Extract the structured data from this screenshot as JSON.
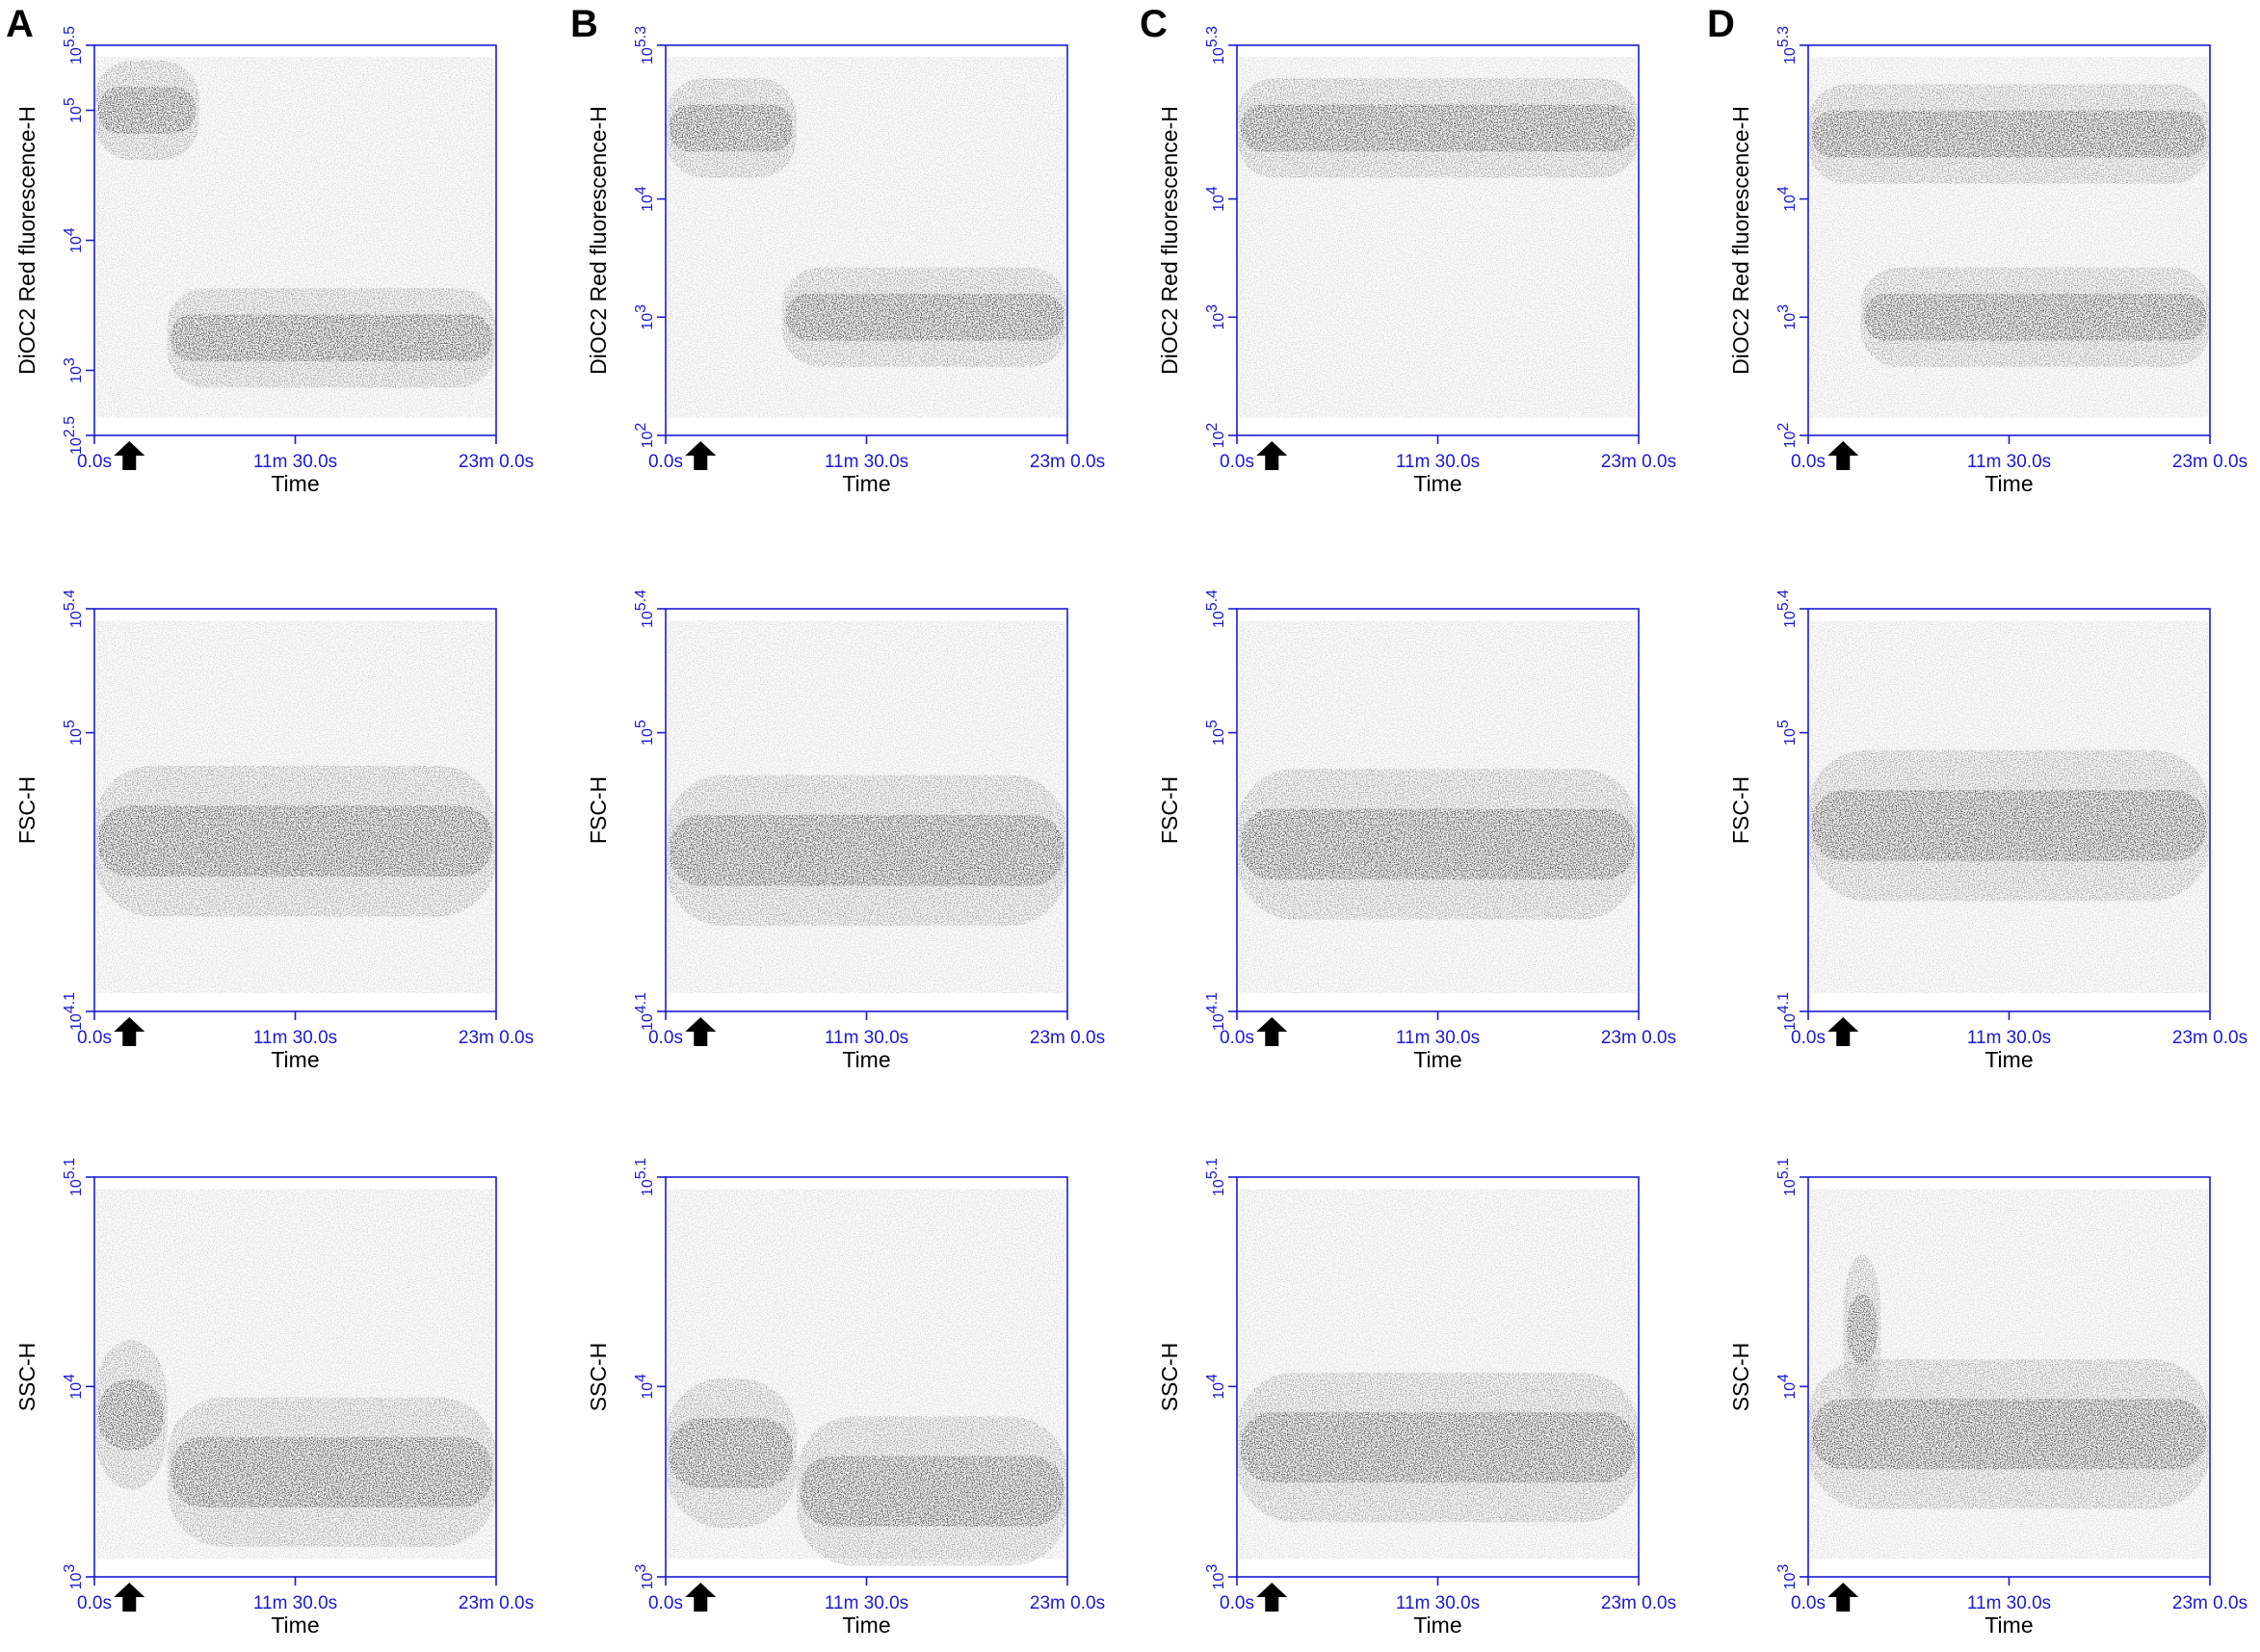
{
  "figure": {
    "panel_letters": [
      "A",
      "B",
      "C",
      "D"
    ]
  },
  "colors": {
    "axis": "#1a1ad0",
    "density_low": "#c0c0c0",
    "density_mid": "#707070",
    "density_high": "#1a1a1a",
    "arrow": "#000000"
  },
  "icons": {
    "arrow": "up-arrow-icon"
  },
  "chart_data": [
    {
      "type": "heatmap",
      "panel": "A",
      "row": 1,
      "xlabel": "Time",
      "ylabel": "DiOC2 Red fluorescence-H",
      "x_ticks": [
        "0.0s",
        "11m 30.0s",
        "23m 0.0s"
      ],
      "xlim_seconds": [
        0,
        1380
      ],
      "y_scale": "log10",
      "ylim_log10": [
        2.5,
        5.5
      ],
      "y_ticks": [
        {
          "base": "10",
          "exp": "2.5",
          "log": 2.5
        },
        {
          "base": "10",
          "exp": "3",
          "log": 3
        },
        {
          "base": "10",
          "exp": "4",
          "log": 4
        },
        {
          "base": "10",
          "exp": "5",
          "log": 5
        },
        {
          "base": "10",
          "exp": "5.5",
          "log": 5.5
        }
      ],
      "arrow_time_s": 120,
      "densest_populations": [
        {
          "time_s": [
            0,
            360
          ],
          "log10_center": 5.0
        },
        {
          "time_s": [
            250,
            1380
          ],
          "log10_center": 3.25
        }
      ]
    },
    {
      "type": "heatmap",
      "panel": "B",
      "row": 1,
      "xlabel": "Time",
      "ylabel": "DiOC2 Red fluorescence-H",
      "x_ticks": [
        "0.0s",
        "11m 30.0s",
        "23m 0.0s"
      ],
      "xlim_seconds": [
        0,
        1380
      ],
      "y_scale": "log10",
      "ylim_log10": [
        2,
        5.3
      ],
      "y_ticks": [
        {
          "base": "10",
          "exp": "2",
          "log": 2
        },
        {
          "base": "10",
          "exp": "3",
          "log": 3
        },
        {
          "base": "10",
          "exp": "4",
          "log": 4
        },
        {
          "base": "10",
          "exp": "5.3",
          "log": 5.3
        }
      ],
      "arrow_time_s": 120,
      "densest_populations": [
        {
          "time_s": [
            0,
            450
          ],
          "log10_center": 4.6
        },
        {
          "time_s": [
            400,
            1380
          ],
          "log10_center": 3.0
        }
      ]
    },
    {
      "type": "heatmap",
      "panel": "C",
      "row": 1,
      "xlabel": "Time",
      "ylabel": "DiOC2 Red fluorescence-H",
      "x_ticks": [
        "0.0s",
        "11m 30.0s",
        "23m 0.0s"
      ],
      "xlim_seconds": [
        0,
        1380
      ],
      "y_scale": "log10",
      "ylim_log10": [
        2,
        5.3
      ],
      "y_ticks": [
        {
          "base": "10",
          "exp": "2",
          "log": 2
        },
        {
          "base": "10",
          "exp": "3",
          "log": 3
        },
        {
          "base": "10",
          "exp": "4",
          "log": 4
        },
        {
          "base": "10",
          "exp": "5.3",
          "log": 5.3
        }
      ],
      "arrow_time_s": 120,
      "densest_populations": [
        {
          "time_s": [
            0,
            1380
          ],
          "log10_center": 4.6
        }
      ]
    },
    {
      "type": "heatmap",
      "panel": "D",
      "row": 1,
      "xlabel": "Time",
      "ylabel": "DiOC2 Red fluorescence-H",
      "x_ticks": [
        "0.0s",
        "11m 30.0s",
        "23m 0.0s"
      ],
      "xlim_seconds": [
        0,
        1380
      ],
      "y_scale": "log10",
      "ylim_log10": [
        2,
        5.3
      ],
      "y_ticks": [
        {
          "base": "10",
          "exp": "2",
          "log": 2
        },
        {
          "base": "10",
          "exp": "3",
          "log": 3
        },
        {
          "base": "10",
          "exp": "4",
          "log": 4
        },
        {
          "base": "10",
          "exp": "5.3",
          "log": 5.3
        }
      ],
      "arrow_time_s": 120,
      "densest_populations": [
        {
          "time_s": [
            0,
            1380
          ],
          "log10_center": 4.55
        },
        {
          "time_s": [
            180,
            1380
          ],
          "log10_center": 3.0
        }
      ]
    },
    {
      "type": "heatmap",
      "panel": "A",
      "row": 2,
      "xlabel": "Time",
      "ylabel": "FSC-H",
      "x_ticks": [
        "0.0s",
        "11m 30.0s",
        "23m 0.0s"
      ],
      "xlim_seconds": [
        0,
        1380
      ],
      "y_scale": "log10",
      "ylim_log10": [
        4.1,
        5.4
      ],
      "y_ticks": [
        {
          "base": "10",
          "exp": "4.1",
          "log": 4.1
        },
        {
          "base": "10",
          "exp": "5",
          "log": 5
        },
        {
          "base": "10",
          "exp": "5.4",
          "log": 5.4
        }
      ],
      "arrow_time_s": 120,
      "densest_populations": [
        {
          "time_s": [
            0,
            1380
          ],
          "log10_center": 4.65
        }
      ]
    },
    {
      "type": "heatmap",
      "panel": "B",
      "row": 2,
      "xlabel": "Time",
      "ylabel": "FSC-H",
      "x_ticks": [
        "0.0s",
        "11m 30.0s",
        "23m 0.0s"
      ],
      "xlim_seconds": [
        0,
        1380
      ],
      "y_scale": "log10",
      "ylim_log10": [
        4.1,
        5.4
      ],
      "y_ticks": [
        {
          "base": "10",
          "exp": "4.1",
          "log": 4.1
        },
        {
          "base": "10",
          "exp": "5",
          "log": 5
        },
        {
          "base": "10",
          "exp": "5.4",
          "log": 5.4
        }
      ],
      "arrow_time_s": 120,
      "densest_populations": [
        {
          "time_s": [
            0,
            1380
          ],
          "log10_center": 4.62
        }
      ]
    },
    {
      "type": "heatmap",
      "panel": "C",
      "row": 2,
      "xlabel": "Time",
      "ylabel": "FSC-H",
      "x_ticks": [
        "0.0s",
        "11m 30.0s",
        "23m 0.0s"
      ],
      "xlim_seconds": [
        0,
        1380
      ],
      "y_scale": "log10",
      "ylim_log10": [
        4.1,
        5.4
      ],
      "y_ticks": [
        {
          "base": "10",
          "exp": "4.1",
          "log": 4.1
        },
        {
          "base": "10",
          "exp": "5",
          "log": 5
        },
        {
          "base": "10",
          "exp": "5.4",
          "log": 5.4
        }
      ],
      "arrow_time_s": 120,
      "densest_populations": [
        {
          "time_s": [
            0,
            1380
          ],
          "log10_center": 4.64
        }
      ]
    },
    {
      "type": "heatmap",
      "panel": "D",
      "row": 2,
      "xlabel": "Time",
      "ylabel": "FSC-H",
      "x_ticks": [
        "0.0s",
        "11m 30.0s",
        "23m 0.0s"
      ],
      "xlim_seconds": [
        0,
        1380
      ],
      "y_scale": "log10",
      "ylim_log10": [
        4.1,
        5.4
      ],
      "y_ticks": [
        {
          "base": "10",
          "exp": "4.1",
          "log": 4.1
        },
        {
          "base": "10",
          "exp": "5",
          "log": 5
        },
        {
          "base": "10",
          "exp": "5.4",
          "log": 5.4
        }
      ],
      "arrow_time_s": 120,
      "densest_populations": [
        {
          "time_s": [
            0,
            1380
          ],
          "log10_center": 4.7
        }
      ]
    },
    {
      "type": "heatmap",
      "panel": "A",
      "row": 3,
      "xlabel": "Time",
      "ylabel": "SSC-H",
      "x_ticks": [
        "0.0s",
        "11m 30.0s",
        "23m 0.0s"
      ],
      "xlim_seconds": [
        0,
        1380
      ],
      "y_scale": "log10",
      "ylim_log10": [
        3,
        5.1
      ],
      "y_ticks": [
        {
          "base": "10",
          "exp": "3",
          "log": 3
        },
        {
          "base": "10",
          "exp": "4",
          "log": 4
        },
        {
          "base": "10",
          "exp": "5.1",
          "log": 5.1
        }
      ],
      "arrow_time_s": 120,
      "densest_populations": [
        {
          "time_s": [
            0,
            250
          ],
          "log10_center": 3.85
        },
        {
          "time_s": [
            250,
            1380
          ],
          "log10_center": 3.55
        }
      ]
    },
    {
      "type": "heatmap",
      "panel": "B",
      "row": 3,
      "xlabel": "Time",
      "ylabel": "SSC-H",
      "x_ticks": [
        "0.0s",
        "11m 30.0s",
        "23m 0.0s"
      ],
      "xlim_seconds": [
        0,
        1380
      ],
      "y_scale": "log10",
      "ylim_log10": [
        3,
        5.1
      ],
      "y_ticks": [
        {
          "base": "10",
          "exp": "3",
          "log": 3
        },
        {
          "base": "10",
          "exp": "4",
          "log": 4
        },
        {
          "base": "10",
          "exp": "5.1",
          "log": 5.1
        }
      ],
      "arrow_time_s": 120,
      "densest_populations": [
        {
          "time_s": [
            0,
            450
          ],
          "log10_center": 3.65
        },
        {
          "time_s": [
            450,
            1380
          ],
          "log10_center": 3.45
        }
      ]
    },
    {
      "type": "heatmap",
      "panel": "C",
      "row": 3,
      "xlabel": "Time",
      "ylabel": "SSC-H",
      "x_ticks": [
        "0.0s",
        "11m 30.0s",
        "23m 0.0s"
      ],
      "xlim_seconds": [
        0,
        1380
      ],
      "y_scale": "log10",
      "ylim_log10": [
        3,
        5.1
      ],
      "y_ticks": [
        {
          "base": "10",
          "exp": "3",
          "log": 3
        },
        {
          "base": "10",
          "exp": "4",
          "log": 4
        },
        {
          "base": "10",
          "exp": "5.1",
          "log": 5.1
        }
      ],
      "arrow_time_s": 120,
      "densest_populations": [
        {
          "time_s": [
            0,
            1380
          ],
          "log10_center": 3.68
        }
      ]
    },
    {
      "type": "heatmap",
      "panel": "D",
      "row": 3,
      "xlabel": "Time",
      "ylabel": "SSC-H",
      "x_ticks": [
        "0.0s",
        "11m 30.0s",
        "23m 0.0s"
      ],
      "xlim_seconds": [
        0,
        1380
      ],
      "y_scale": "log10",
      "ylim_log10": [
        3,
        5.1
      ],
      "y_ticks": [
        {
          "base": "10",
          "exp": "3",
          "log": 3
        },
        {
          "base": "10",
          "exp": "4",
          "log": 4
        },
        {
          "base": "10",
          "exp": "5.1",
          "log": 5.1
        }
      ],
      "arrow_time_s": 120,
      "densest_populations": [
        {
          "time_s": [
            0,
            1380
          ],
          "log10_center": 3.75
        },
        {
          "time_s": [
            120,
            250
          ],
          "log10_center": 4.3
        }
      ]
    }
  ]
}
